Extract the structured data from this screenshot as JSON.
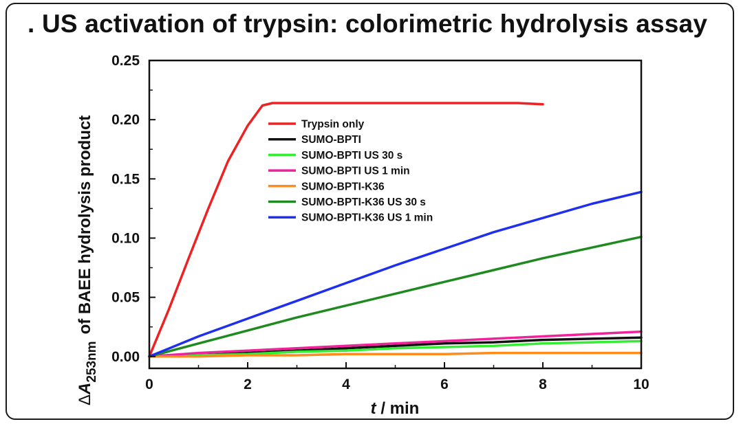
{
  "title": ". US activation of trypsin: colorimetric hydrolysis assay",
  "chart_data": {
    "type": "line",
    "xlabel_italic": "t",
    "xlabel_unit": " / min",
    "ylabel_delta": "Δ",
    "ylabel_var": "A",
    "ylabel_sub": "253nm",
    "ylabel_rest": "of BAEE hydrolysis product",
    "xlim": [
      0,
      10
    ],
    "ylim": [
      -0.01,
      0.25
    ],
    "xticks": [
      "0",
      "2",
      "4",
      "6",
      "8",
      "10"
    ],
    "yticks": [
      "0.00",
      "0.05",
      "0.10",
      "0.15",
      "0.20",
      "0.25"
    ],
    "grid": false,
    "legend_position": "top-left-inside",
    "series": [
      {
        "name": "Trypsin only",
        "color": "#ee2222",
        "x": [
          0,
          0.4,
          0.8,
          1.2,
          1.6,
          2.0,
          2.3,
          2.5,
          3,
          3.5,
          4,
          4.5,
          5,
          5.5,
          6,
          6.5,
          7,
          7.5,
          8
        ],
        "y": [
          0.0,
          0.04,
          0.083,
          0.125,
          0.165,
          0.195,
          0.212,
          0.214,
          0.214,
          0.214,
          0.214,
          0.214,
          0.214,
          0.214,
          0.214,
          0.214,
          0.214,
          0.214,
          0.213
        ]
      },
      {
        "name": "SUMO-BPTI",
        "color": "#111111",
        "x": [
          0,
          1,
          2,
          3,
          4,
          5,
          6,
          7,
          8,
          9,
          10
        ],
        "y": [
          0.0,
          0.001,
          0.003,
          0.005,
          0.007,
          0.009,
          0.011,
          0.012,
          0.014,
          0.015,
          0.016
        ]
      },
      {
        "name": "SUMO-BPTI US 30 s",
        "color": "#33ee33",
        "x": [
          0,
          1,
          2,
          3,
          4,
          5,
          6,
          7,
          8,
          9,
          10
        ],
        "y": [
          0.0,
          0.001,
          0.002,
          0.004,
          0.005,
          0.007,
          0.008,
          0.009,
          0.011,
          0.012,
          0.013
        ]
      },
      {
        "name": "SUMO-BPTI US 1 min",
        "color": "#ee2299",
        "x": [
          0,
          1,
          2,
          3,
          4,
          5,
          6,
          7,
          8,
          9,
          10
        ],
        "y": [
          0.0,
          0.003,
          0.005,
          0.007,
          0.009,
          0.011,
          0.013,
          0.015,
          0.017,
          0.019,
          0.021
        ]
      },
      {
        "name": "SUMO-BPTI-K36",
        "color": "#ff8c1a",
        "x": [
          0,
          1,
          2,
          3,
          4,
          5,
          6,
          7,
          8,
          9,
          10
        ],
        "y": [
          0.0,
          0.0,
          0.001,
          0.001,
          0.002,
          0.002,
          0.002,
          0.003,
          0.003,
          0.003,
          0.003
        ]
      },
      {
        "name": "SUMO-BPTI-K36 US 30 s",
        "color": "#1f8a1f",
        "x": [
          0,
          1,
          2,
          3,
          4,
          5,
          6,
          7,
          8,
          9,
          10
        ],
        "y": [
          0.0,
          0.011,
          0.022,
          0.033,
          0.043,
          0.053,
          0.063,
          0.073,
          0.083,
          0.092,
          0.101
        ]
      },
      {
        "name": "SUMO-BPTI-K36 US 1 min",
        "color": "#1f2fee",
        "x": [
          0,
          1,
          2,
          3,
          4,
          5,
          6,
          7,
          8,
          9,
          10
        ],
        "y": [
          0.0,
          0.017,
          0.032,
          0.047,
          0.062,
          0.077,
          0.091,
          0.105,
          0.117,
          0.129,
          0.139
        ]
      }
    ]
  }
}
